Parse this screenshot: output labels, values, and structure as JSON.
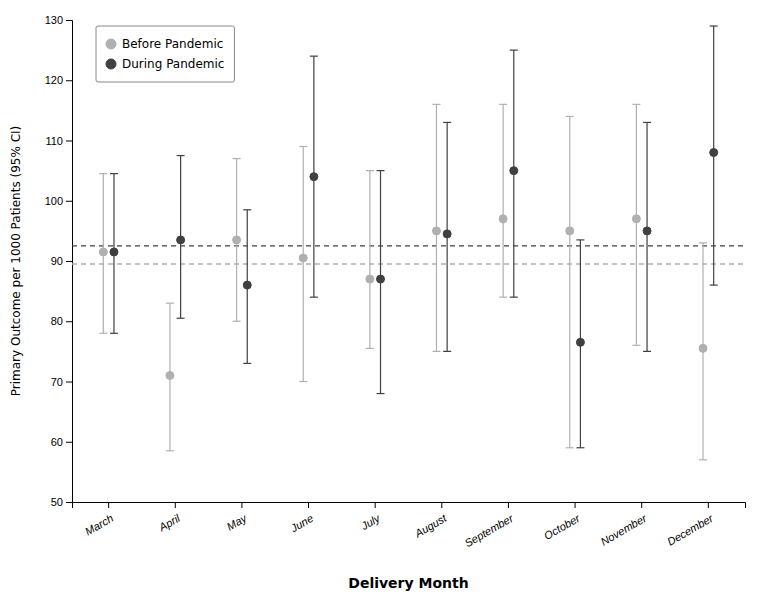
{
  "chart_data": {
    "type": "errorbar",
    "xlabel": "Delivery Month",
    "ylabel": "Primary Outcome per 1000 Patients (95% CI)",
    "categories": [
      "March",
      "April",
      "May",
      "June",
      "July",
      "August",
      "September",
      "October",
      "November",
      "December"
    ],
    "series": [
      {
        "name": "Before Pandemic",
        "color": "#b0b0b0",
        "values": [
          91.5,
          71.0,
          93.5,
          90.5,
          87.0,
          95.0,
          97.0,
          95.0,
          97.0,
          75.5
        ],
        "ci_low": [
          78.0,
          58.5,
          80.0,
          70.0,
          75.5,
          75.0,
          84.0,
          59.0,
          76.0,
          57.0
        ],
        "ci_high": [
          104.5,
          83.0,
          107.0,
          109.0,
          105.0,
          116.0,
          116.0,
          114.0,
          116.0,
          93.0
        ],
        "reference_line": 89.5
      },
      {
        "name": "During Pandemic",
        "color": "#404040",
        "values": [
          91.5,
          93.5,
          86.0,
          104.0,
          87.0,
          94.5,
          105.0,
          76.5,
          95.0,
          108.0
        ],
        "ci_low": [
          78.0,
          80.5,
          73.0,
          84.0,
          68.0,
          75.0,
          84.0,
          59.0,
          75.0,
          86.0
        ],
        "ci_high": [
          104.5,
          107.5,
          98.5,
          124.0,
          105.0,
          113.0,
          125.0,
          93.5,
          113.0,
          129.0
        ],
        "reference_line": 92.5
      }
    ],
    "ylim": [
      50,
      130
    ],
    "yticks": [
      50,
      60,
      70,
      80,
      90,
      100,
      110,
      120,
      130
    ],
    "grid": false,
    "legend": "upper left"
  }
}
